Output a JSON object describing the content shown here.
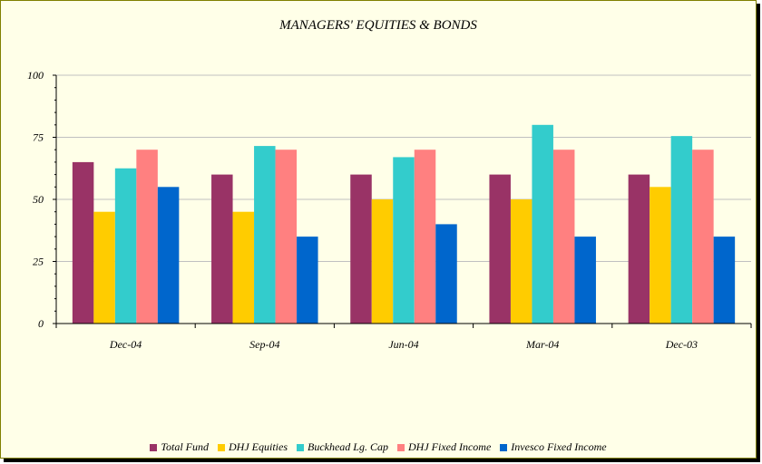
{
  "chart_data": {
    "type": "bar",
    "title": "MANAGERS' EQUITIES & BONDS",
    "xlabel": "",
    "ylabel": "",
    "categories": [
      "Dec-04",
      "Sep-04",
      "Jun-04",
      "Mar-04",
      "Dec-03"
    ],
    "ylim": [
      0,
      100
    ],
    "yticks": [
      "0",
      "25",
      "50",
      "75",
      "100"
    ],
    "grid": true,
    "legend_position": "bottom",
    "series": [
      {
        "name": "Total Fund",
        "color": "#993366",
        "values": [
          65,
          60,
          60,
          60,
          60
        ]
      },
      {
        "name": "DHJ Equities",
        "color": "#ffcc00",
        "values": [
          45,
          45,
          50,
          50,
          55
        ]
      },
      {
        "name": "Buckhead Lg. Cap",
        "color": "#33cccc",
        "values": [
          62.5,
          71.5,
          67,
          80,
          75.5
        ]
      },
      {
        "name": "DHJ Fixed Income",
        "color": "#ff8080",
        "values": [
          70,
          70,
          70,
          70,
          70
        ]
      },
      {
        "name": "Invesco Fixed Income",
        "color": "#0066cc",
        "values": [
          55,
          35,
          40,
          35,
          35
        ]
      }
    ]
  }
}
